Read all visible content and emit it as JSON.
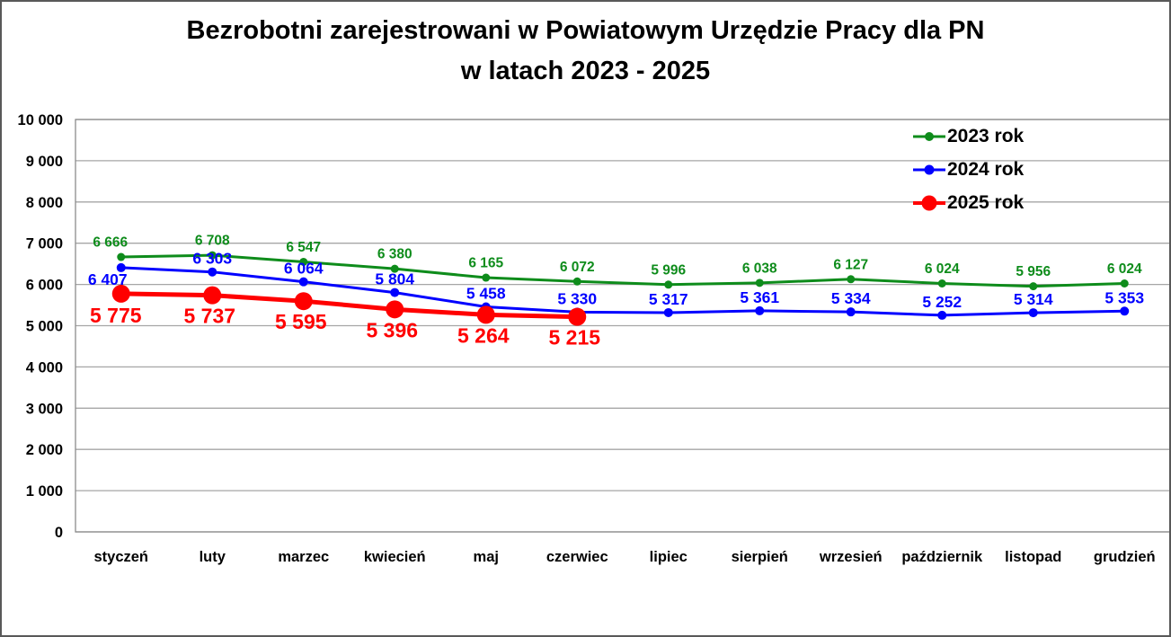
{
  "title": {
    "line1": "Bezrobotni zarejestrowani w Powiatowym Urzędzie Pracy dla PN",
    "line2": "w latach 2023 - 2025"
  },
  "chart_data": {
    "type": "line",
    "title": "Bezrobotni zarejestrowani w Powiatowym Urzędzie Pracy dla PN w latach 2023 - 2025",
    "categories": [
      "styczeń",
      "luty",
      "marzec",
      "kwiecień",
      "maj",
      "czerwiec",
      "lipiec",
      "sierpień",
      "wrzesień",
      "październik",
      "listopad",
      "grudzień"
    ],
    "series": [
      {
        "name": "2023 rok",
        "color": "#0E8C1B",
        "values": [
          6666,
          6708,
          6547,
          6380,
          6165,
          6072,
          5996,
          6038,
          6127,
          6024,
          5956,
          6024
        ],
        "line_width": 3,
        "marker_radius": 4.5,
        "legend_marker_radius": 5,
        "label_font_size": 15.5,
        "label_dx": 0,
        "label_dy": -16,
        "label_overrides": {
          "0": {
            "dx": -12,
            "dy": -16
          }
        }
      },
      {
        "name": "2024 rok",
        "color": "#0000FF",
        "values": [
          6407,
          6303,
          6064,
          5804,
          5458,
          5330,
          5317,
          5361,
          5334,
          5252,
          5314,
          5353
        ],
        "line_width": 3,
        "marker_radius": 5,
        "legend_marker_radius": 5.5,
        "label_font_size": 17.5,
        "label_dx": 0,
        "label_dy": -15,
        "label_overrides": {
          "0": {
            "dx": -15,
            "dy": 13
          }
        }
      },
      {
        "name": "2025 rok",
        "color": "#FF0000",
        "values": [
          5775,
          5737,
          5595,
          5396,
          5264,
          5215
        ],
        "line_width": 5,
        "marker_radius": 10,
        "legend_marker_radius": 8.5,
        "label_font_size": 23,
        "label_dx": -3,
        "label_dy": 23,
        "label_overrides": {
          "0": {
            "dx": -6,
            "dy": 24
          }
        }
      }
    ],
    "ylim": [
      0,
      10000
    ],
    "y_tick_step": 1000,
    "y_ticks": [
      "0",
      "1 000",
      "2 000",
      "3 000",
      "4 000",
      "5 000",
      "6 000",
      "7 000",
      "8 000",
      "9 000",
      "10 000"
    ],
    "grid": true,
    "gridline_color": "#A6A6A6",
    "plot_border_color": "#8C8C8C",
    "axis_text_color": "#000000",
    "legend_position": "top-right-inside"
  }
}
